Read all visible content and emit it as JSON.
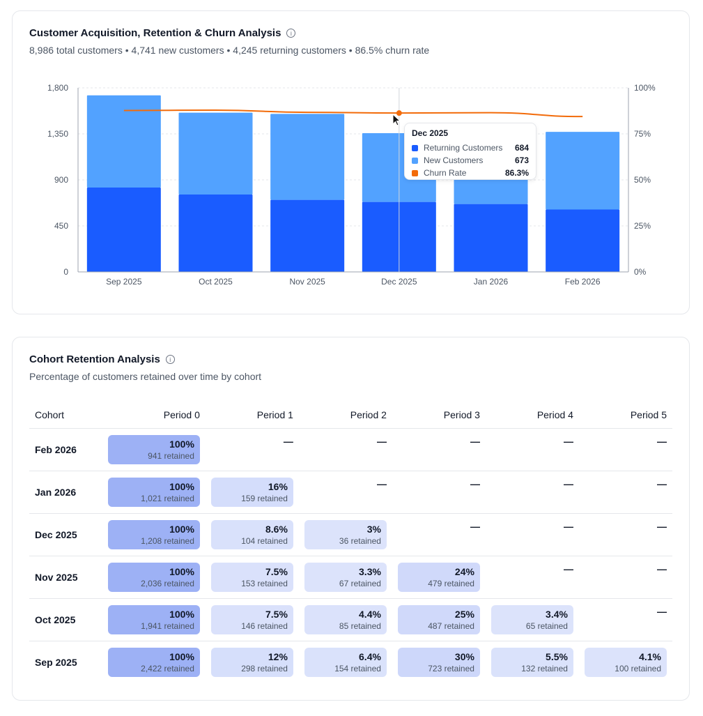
{
  "acquisition": {
    "title": "Customer Acquisition, Retention & Churn Analysis",
    "summary": "8,986 total customers • 4,741 new customers • 4,245 returning customers • 86.5% churn rate",
    "tooltip": {
      "title": "Dec 2025",
      "rows": [
        {
          "label": "Returning Customers",
          "value": "684",
          "color": "#1a5cff"
        },
        {
          "label": "New Customers",
          "value": "673",
          "color": "#52a2ff"
        },
        {
          "label": "Churn Rate",
          "value": "86.3%",
          "color": "#f26b0a"
        }
      ]
    }
  },
  "chart_data": {
    "type": "bar",
    "stacked": true,
    "categories": [
      "Sep 2025",
      "Oct 2025",
      "Nov 2025",
      "Dec 2025",
      "Jan 2026",
      "Feb 2026"
    ],
    "series": [
      {
        "name": "Returning Customers",
        "type": "bar",
        "axis": "left",
        "color": "#1a5cff",
        "values": [
          825,
          757,
          705,
          684,
          664,
          610
        ]
      },
      {
        "name": "New Customers",
        "type": "bar",
        "axis": "left",
        "color": "#52a2ff",
        "values": [
          902,
          800,
          840,
          673,
          766,
          760
        ]
      },
      {
        "name": "Churn Rate",
        "type": "line",
        "axis": "right",
        "color": "#f26b0a",
        "values": [
          87.7,
          87.9,
          86.7,
          86.3,
          86.5,
          84.4
        ]
      }
    ],
    "ylim": [
      0,
      1800
    ],
    "yticks": [
      "0",
      "450",
      "900",
      "1,350",
      "1,800"
    ],
    "y2lim": [
      0,
      100
    ],
    "y2ticks": [
      "0%",
      "25%",
      "50%",
      "75%",
      "100%"
    ],
    "grid": true
  },
  "cohort": {
    "title": "Cohort Retention Analysis",
    "subtitle": "Percentage of customers retained over time by cohort",
    "headers": [
      "Cohort",
      "Period 0",
      "Period 1",
      "Period 2",
      "Period 3",
      "Period 4",
      "Period 5"
    ],
    "empty": "—",
    "rows": [
      {
        "cohort": "Feb 2026",
        "cells": [
          {
            "pct": "100%",
            "ret": "941 retained",
            "v": 1
          }
        ]
      },
      {
        "cohort": "Jan 2026",
        "cells": [
          {
            "pct": "100%",
            "ret": "1,021 retained",
            "v": 1
          },
          {
            "pct": "16%",
            "ret": "159 retained",
            "v": 0.16
          }
        ]
      },
      {
        "cohort": "Dec 2025",
        "cells": [
          {
            "pct": "100%",
            "ret": "1,208 retained",
            "v": 1
          },
          {
            "pct": "8.6%",
            "ret": "104 retained",
            "v": 0.086
          },
          {
            "pct": "3%",
            "ret": "36 retained",
            "v": 0.03
          }
        ]
      },
      {
        "cohort": "Nov 2025",
        "cells": [
          {
            "pct": "100%",
            "ret": "2,036 retained",
            "v": 1
          },
          {
            "pct": "7.5%",
            "ret": "153 retained",
            "v": 0.075
          },
          {
            "pct": "3.3%",
            "ret": "67 retained",
            "v": 0.033
          },
          {
            "pct": "24%",
            "ret": "479 retained",
            "v": 0.24
          }
        ]
      },
      {
        "cohort": "Oct 2025",
        "cells": [
          {
            "pct": "100%",
            "ret": "1,941 retained",
            "v": 1
          },
          {
            "pct": "7.5%",
            "ret": "146 retained",
            "v": 0.075
          },
          {
            "pct": "4.4%",
            "ret": "85 retained",
            "v": 0.044
          },
          {
            "pct": "25%",
            "ret": "487 retained",
            "v": 0.25
          },
          {
            "pct": "3.4%",
            "ret": "65 retained",
            "v": 0.034
          }
        ]
      },
      {
        "cohort": "Sep 2025",
        "cells": [
          {
            "pct": "100%",
            "ret": "2,422 retained",
            "v": 1
          },
          {
            "pct": "12%",
            "ret": "298 retained",
            "v": 0.12
          },
          {
            "pct": "6.4%",
            "ret": "154 retained",
            "v": 0.064
          },
          {
            "pct": "30%",
            "ret": "723 retained",
            "v": 0.3
          },
          {
            "pct": "5.5%",
            "ret": "132 retained",
            "v": 0.055
          },
          {
            "pct": "4.1%",
            "ret": "100 retained",
            "v": 0.041
          }
        ]
      }
    ]
  }
}
